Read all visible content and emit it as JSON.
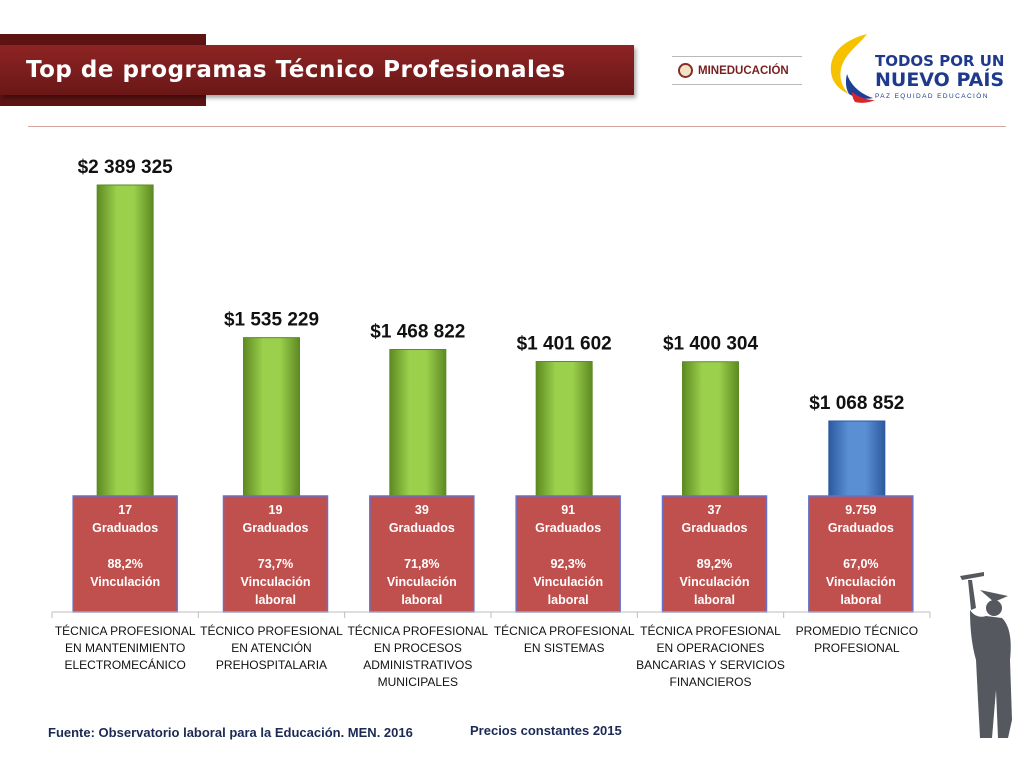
{
  "header": {
    "title": "Top de programas Técnico Profesionales",
    "ministry_logo_text": "MINEDUCACIÓN",
    "campaign_logo_line1": "TODOS POR UN",
    "campaign_logo_line2": "NUEVO PAÍS",
    "campaign_logo_tagline": "PAZ EQUIDAD EDUCACIÓN"
  },
  "colors": {
    "title_bar": "#7a1c1c",
    "bar_green": "#8fc440",
    "bar_blue": "#4a7ec2",
    "label_box": "#c0504d",
    "label_box_border": "#6670c8"
  },
  "chart_data": {
    "type": "bar",
    "categories": [
      [
        "TÉCNICA PROFESIONAL",
        "EN MANTENIMIENTO",
        "ELECTROMECÁNICO"
      ],
      [
        "TÉCNICO PROFESIONAL",
        "EN ATENCIÓN",
        "PREHOSPITALARIA"
      ],
      [
        "TÉCNICA PROFESIONAL",
        "EN PROCESOS",
        "ADMINISTRATIVOS",
        "MUNICIPALES"
      ],
      [
        "TÉCNICA PROFESIONAL",
        "EN SISTEMAS"
      ],
      [
        "TÉCNICA PROFESIONAL",
        "EN OPERACIONES",
        "BANCARIAS Y SERVICIOS",
        "FINANCIEROS"
      ],
      [
        "PROMEDIO TÉCNICO",
        "PROFESIONAL"
      ]
    ],
    "values": [
      2389325,
      1535229,
      1468822,
      1401602,
      1400304,
      1068852
    ],
    "value_labels": [
      "$2 389 325",
      "$1 535 229",
      "$1 468 822",
      "$1 401 602",
      "$1 400 304",
      "$1 068 852"
    ],
    "bar_colors": [
      "#8fc440",
      "#8fc440",
      "#8fc440",
      "#8fc440",
      "#8fc440",
      "#4a7ec2"
    ],
    "annotations": [
      [
        "17",
        "Graduados",
        "",
        "88,2%",
        "Vinculación"
      ],
      [
        "19",
        "Graduados",
        "",
        "73,7%",
        "Vinculación",
        "laboral"
      ],
      [
        "39",
        "Graduados",
        "",
        "71,8%",
        "Vinculación",
        "laboral"
      ],
      [
        "91",
        "Graduados",
        "",
        "92,3%",
        "Vinculación",
        "laboral"
      ],
      [
        "37",
        "Graduados",
        "",
        "89,2%",
        "Vinculación",
        "laboral"
      ],
      [
        "9.759",
        "Graduados",
        "",
        "67,0%",
        "Vinculación",
        "laboral"
      ]
    ],
    "ylim": [
      0,
      2450000
    ],
    "grid": false,
    "legend": "none",
    "title": "",
    "xlabel": "",
    "ylabel": ""
  },
  "footer": {
    "source": "Fuente: Observatorio laboral para la Educación. MEN. 2016",
    "note": "Precios constantes  2015"
  }
}
